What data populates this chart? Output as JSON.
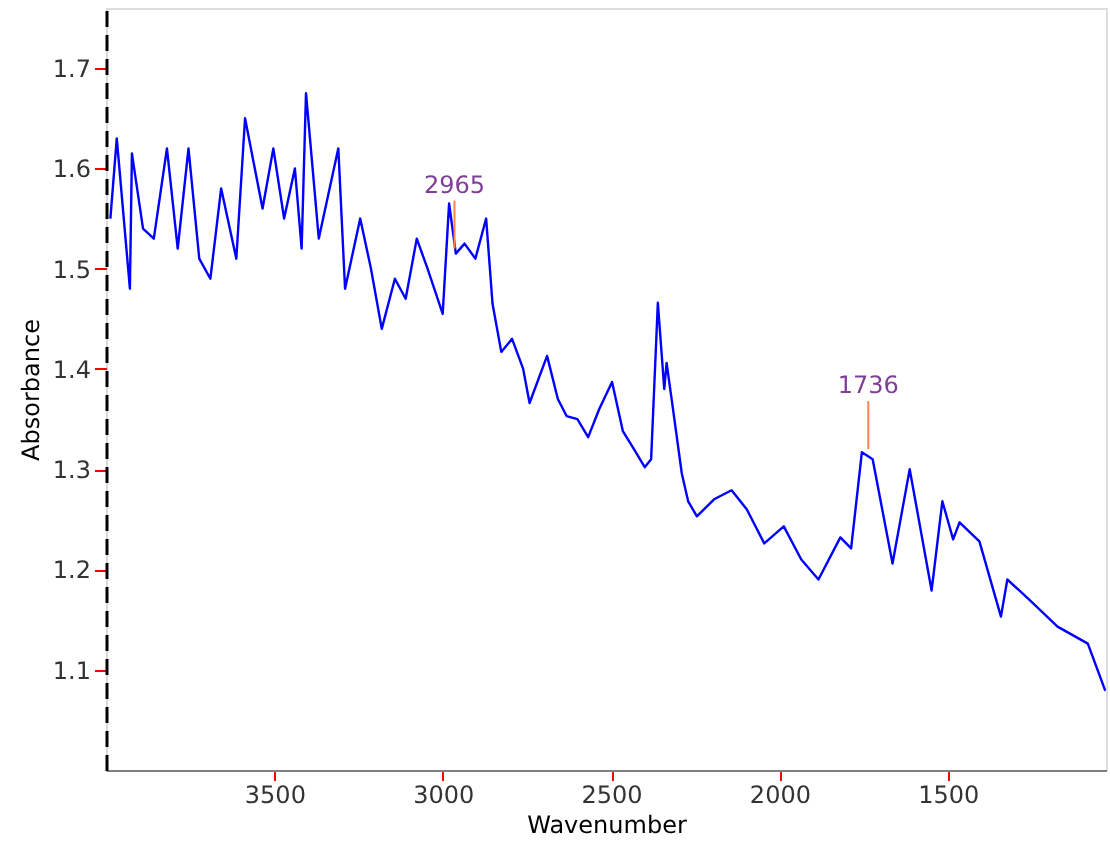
{
  "chart_data": {
    "type": "line",
    "xlabel": "Wavenumber",
    "ylabel": "Absorbance",
    "x": [
      3987,
      3968,
      3929,
      3923,
      3890,
      3858,
      3819,
      3787,
      3755,
      3723,
      3690,
      3658,
      3613,
      3587,
      3535,
      3503,
      3471,
      3439,
      3419,
      3406,
      3368,
      3310,
      3290,
      3245,
      3213,
      3181,
      3142,
      3110,
      3077,
      3045,
      3000,
      2981,
      2961,
      2935,
      2903,
      2871,
      2852,
      2826,
      2794,
      2761,
      2742,
      2690,
      2658,
      2632,
      2600,
      2568,
      2535,
      2497,
      2465,
      2432,
      2400,
      2381,
      2361,
      2342,
      2335,
      2316,
      2290,
      2271,
      2245,
      2194,
      2142,
      2097,
      2045,
      1987,
      1935,
      1884,
      1819,
      1787,
      1755,
      1723,
      1664,
      1613,
      1548,
      1516,
      1484,
      1465,
      1406,
      1342,
      1323,
      1258,
      1174,
      1084,
      1032
    ],
    "series": [
      {
        "color": "#0000ff",
        "values": [
          1.55,
          1.63,
          1.48,
          1.615,
          1.54,
          1.53,
          1.62,
          1.52,
          1.62,
          1.51,
          1.49,
          1.58,
          1.51,
          1.65,
          1.56,
          1.62,
          1.55,
          1.6,
          1.52,
          1.675,
          1.53,
          1.62,
          1.48,
          1.55,
          1.5,
          1.44,
          1.49,
          1.47,
          1.53,
          1.5,
          1.455,
          1.565,
          1.515,
          1.525,
          1.51,
          1.55,
          1.465,
          1.417,
          1.43,
          1.4,
          1.366,
          1.413,
          1.37,
          1.353,
          1.35,
          1.332,
          1.36,
          1.387,
          1.338,
          1.32,
          1.302,
          1.31,
          1.466,
          1.38,
          1.406,
          1.36,
          1.296,
          1.268,
          1.253,
          1.27,
          1.279,
          1.26,
          1.226,
          1.243,
          1.21,
          1.19,
          1.232,
          1.221,
          1.317,
          1.31,
          1.206,
          1.3,
          1.179,
          1.268,
          1.23,
          1.247,
          1.228,
          1.153,
          1.19,
          1.17,
          1.143,
          1.126,
          1.079
        ]
      }
    ],
    "xlim": [
      4000,
      1030
    ],
    "xticks": [
      3500,
      3000,
      2500,
      2000,
      1500
    ],
    "ylim": [
      1.0,
      1.76
    ],
    "yticks": [
      1.1,
      1.2,
      1.3,
      1.4,
      1.5,
      1.6,
      1.7
    ],
    "grid": false,
    "annotations": [
      {
        "text": "2965",
        "x": 2965,
        "y": 1.52
      },
      {
        "text": "1736",
        "x": 1736,
        "y": 1.32
      }
    ]
  }
}
